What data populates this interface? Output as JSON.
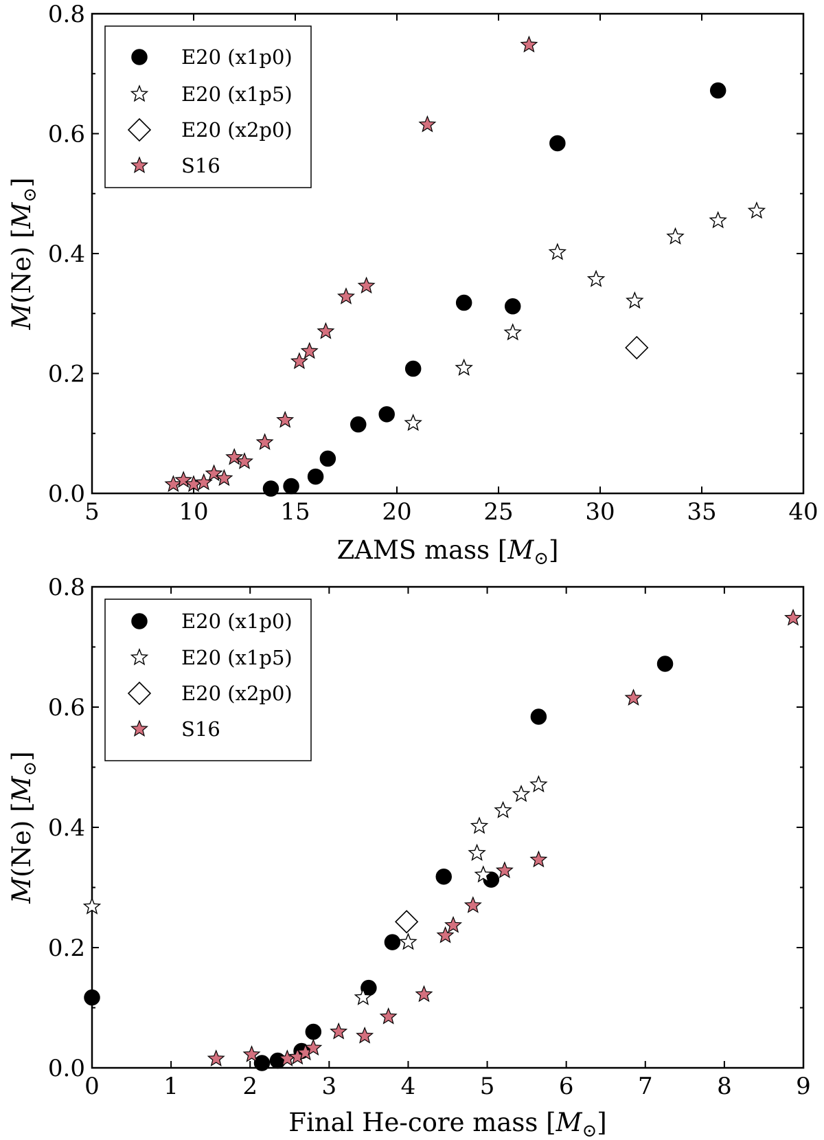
{
  "chart_data": [
    {
      "type": "scatter",
      "xlabel": "ZAMS mass [M⊙]",
      "ylabel": "M(Ne) [M⊙]",
      "xlim": [
        5,
        40
      ],
      "ylim": [
        0.0,
        0.8
      ],
      "xticks": [
        5,
        10,
        15,
        20,
        25,
        30,
        35,
        40
      ],
      "yticks": [
        0.0,
        0.2,
        0.4,
        0.6,
        0.8
      ],
      "xtick_labels": [
        "5",
        "10",
        "15",
        "20",
        "25",
        "30",
        "35",
        "40"
      ],
      "ytick_labels": [
        "0.0",
        "0.2",
        "0.4",
        "0.6",
        "0.8"
      ],
      "legend_position": "top-left",
      "series": [
        {
          "name": "E20 (x1p0)",
          "marker": "circle",
          "color": "#000000",
          "x": [
            13.8,
            14.8,
            16.0,
            16.6,
            18.1,
            19.5,
            20.8,
            23.3,
            25.7,
            27.9,
            35.8
          ],
          "y": [
            0.008,
            0.012,
            0.028,
            0.058,
            0.115,
            0.132,
            0.208,
            0.318,
            0.312,
            0.584,
            0.672
          ]
        },
        {
          "name": "E20 (x1p5)",
          "marker": "star-open",
          "color": "#ffffff",
          "x": [
            20.8,
            23.3,
            25.7,
            27.9,
            29.8,
            31.7,
            33.7,
            35.8,
            37.7
          ],
          "y": [
            0.117,
            0.209,
            0.268,
            0.402,
            0.357,
            0.321,
            0.428,
            0.455,
            0.471
          ]
        },
        {
          "name": "E20 (x2p0)",
          "marker": "diamond",
          "color": "#ffffff",
          "x": [
            31.8
          ],
          "y": [
            0.243
          ]
        },
        {
          "name": "S16",
          "marker": "star",
          "color": "#d4707e",
          "x": [
            9.0,
            9.5,
            10.0,
            10.5,
            11.0,
            11.5,
            12.0,
            12.5,
            13.5,
            14.5,
            15.2,
            15.7,
            16.5,
            17.5,
            18.5,
            21.5,
            26.5
          ],
          "y": [
            0.015,
            0.022,
            0.015,
            0.018,
            0.033,
            0.025,
            0.06,
            0.053,
            0.085,
            0.122,
            0.22,
            0.237,
            0.27,
            0.328,
            0.346,
            0.615,
            0.748
          ]
        }
      ]
    },
    {
      "type": "scatter",
      "xlabel": "Final He-core mass [M⊙]",
      "ylabel": "M(Ne) [M⊙]",
      "xlim": [
        0,
        9
      ],
      "ylim": [
        0.0,
        0.8
      ],
      "xticks": [
        0,
        1,
        2,
        3,
        4,
        5,
        6,
        7,
        8,
        9
      ],
      "yticks": [
        0.0,
        0.2,
        0.4,
        0.6,
        0.8
      ],
      "xtick_labels": [
        "0",
        "1",
        "2",
        "3",
        "4",
        "5",
        "6",
        "7",
        "8",
        "9"
      ],
      "ytick_labels": [
        "0.0",
        "0.2",
        "0.4",
        "0.6",
        "0.8"
      ],
      "legend_position": "top-left",
      "series": [
        {
          "name": "E20 (x1p0)",
          "marker": "circle",
          "color": "#000000",
          "x": [
            0.0,
            2.15,
            2.35,
            2.65,
            2.8,
            3.5,
            3.8,
            4.45,
            5.05,
            5.65,
            7.25
          ],
          "y": [
            0.117,
            0.008,
            0.012,
            0.028,
            0.06,
            0.133,
            0.209,
            0.318,
            0.313,
            0.584,
            0.672
          ]
        },
        {
          "name": "E20 (x1p5)",
          "marker": "star-open",
          "color": "#ffffff",
          "x": [
            0.0,
            3.43,
            4.0,
            4.87,
            4.9,
            4.95,
            5.2,
            5.43,
            5.65
          ],
          "y": [
            0.268,
            0.117,
            0.209,
            0.357,
            0.402,
            0.321,
            0.428,
            0.455,
            0.471
          ]
        },
        {
          "name": "E20 (x2p0)",
          "marker": "diamond",
          "color": "#ffffff",
          "x": [
            3.98
          ],
          "y": [
            0.243
          ]
        },
        {
          "name": "S16",
          "marker": "star",
          "color": "#d4707e",
          "x": [
            1.57,
            2.02,
            2.47,
            2.6,
            2.7,
            2.8,
            3.12,
            3.45,
            3.75,
            4.2,
            4.47,
            4.57,
            4.82,
            5.22,
            5.65,
            6.85,
            8.87
          ],
          "y": [
            0.015,
            0.022,
            0.015,
            0.018,
            0.025,
            0.033,
            0.06,
            0.053,
            0.085,
            0.122,
            0.22,
            0.237,
            0.27,
            0.328,
            0.346,
            0.615,
            0.748
          ]
        }
      ]
    }
  ]
}
